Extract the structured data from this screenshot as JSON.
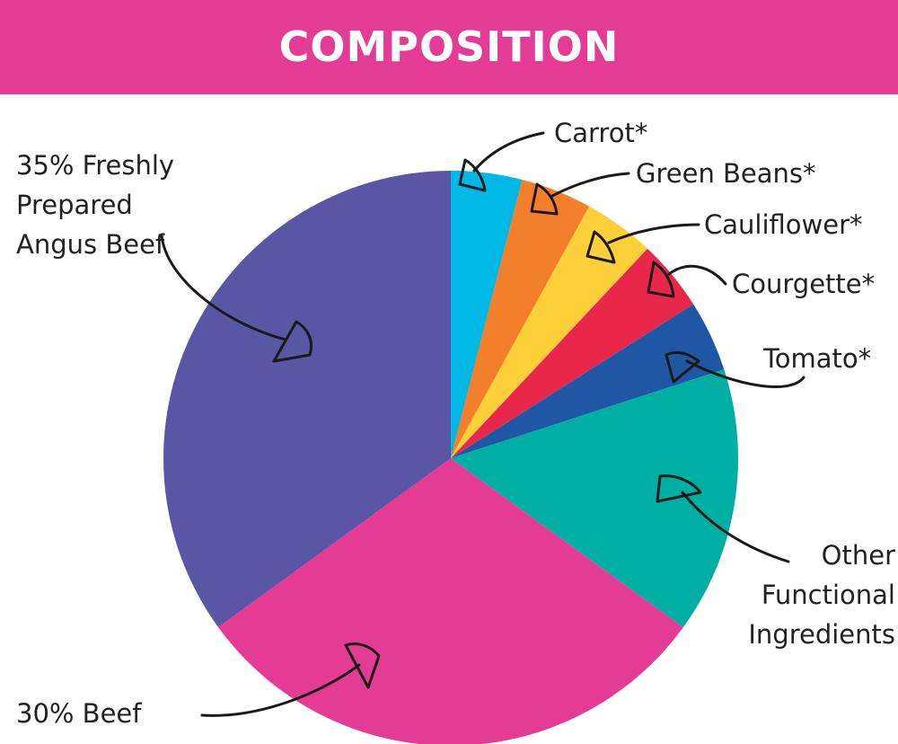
{
  "chart_data": {
    "type": "pie",
    "title": "COMPOSITION",
    "categories": [
      "Carrot*",
      "Green Beans*",
      "Cauliflower*",
      "Courgette*",
      "Tomato*",
      "Other Functional Ingredients",
      "30% Beef",
      "35% Freshly Prepared Angus Beef"
    ],
    "values": [
      4,
      4,
      4,
      4,
      4,
      15,
      30,
      35
    ],
    "colors": [
      "#00b8e6",
      "#f47f2a",
      "#fdd03a",
      "#e8274a",
      "#1f57a5",
      "#00afa3",
      "#e43b94",
      "#5957a5"
    ]
  }
}
